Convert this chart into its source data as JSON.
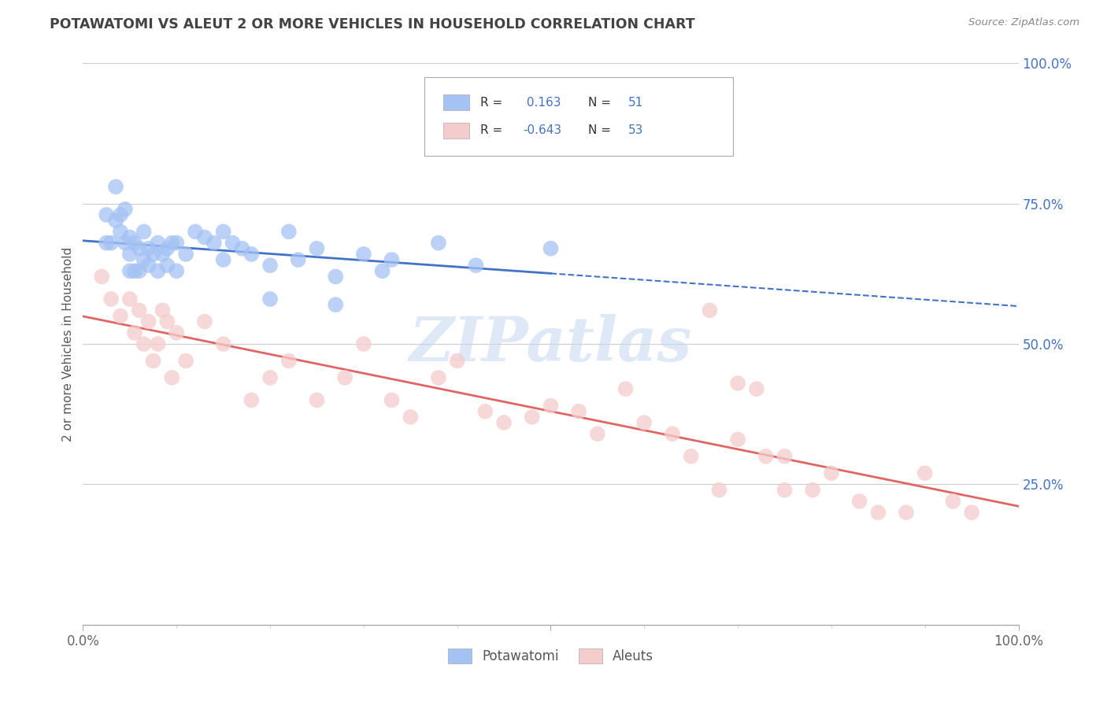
{
  "title": "POTAWATOMI VS ALEUT 2 OR MORE VEHICLES IN HOUSEHOLD CORRELATION CHART",
  "source": "Source: ZipAtlas.com",
  "ylabel": "2 or more Vehicles in Household",
  "legend_labels": [
    "Potawatomi",
    "Aleuts"
  ],
  "r_potawatomi": 0.163,
  "n_potawatomi": 51,
  "r_aleut": -0.643,
  "n_aleut": 53,
  "xlim": [
    0.0,
    1.0
  ],
  "ylim": [
    0.0,
    1.0
  ],
  "blue_color": "#a4c2f4",
  "pink_color": "#f4cccc",
  "blue_line_color": "#4472c4",
  "pink_line_color": "#e06666",
  "title_color": "#434343",
  "source_color": "#888888",
  "tick_color": "#4472c4",
  "watermark_color": "#c9d9f0",
  "potawatomi_x": [
    0.025,
    0.025,
    0.03,
    0.035,
    0.035,
    0.04,
    0.04,
    0.045,
    0.045,
    0.05,
    0.05,
    0.05,
    0.055,
    0.055,
    0.06,
    0.06,
    0.065,
    0.065,
    0.07,
    0.07,
    0.075,
    0.08,
    0.08,
    0.085,
    0.09,
    0.09,
    0.095,
    0.1,
    0.11,
    0.12,
    0.13,
    0.14,
    0.15,
    0.16,
    0.17,
    0.18,
    0.2,
    0.22,
    0.23,
    0.25,
    0.27,
    0.3,
    0.33,
    0.38,
    0.42,
    0.5,
    0.27,
    0.32,
    0.15,
    0.2,
    0.1
  ],
  "potawatomi_y": [
    0.68,
    0.73,
    0.68,
    0.72,
    0.78,
    0.7,
    0.73,
    0.68,
    0.74,
    0.63,
    0.66,
    0.69,
    0.63,
    0.68,
    0.63,
    0.67,
    0.65,
    0.7,
    0.64,
    0.67,
    0.66,
    0.63,
    0.68,
    0.66,
    0.64,
    0.67,
    0.68,
    0.68,
    0.66,
    0.7,
    0.69,
    0.68,
    0.7,
    0.68,
    0.67,
    0.66,
    0.64,
    0.7,
    0.65,
    0.67,
    0.62,
    0.66,
    0.65,
    0.68,
    0.64,
    0.67,
    0.57,
    0.63,
    0.65,
    0.58,
    0.63
  ],
  "aleut_x": [
    0.02,
    0.03,
    0.04,
    0.05,
    0.055,
    0.06,
    0.065,
    0.07,
    0.075,
    0.08,
    0.085,
    0.09,
    0.095,
    0.1,
    0.11,
    0.13,
    0.15,
    0.18,
    0.2,
    0.22,
    0.25,
    0.28,
    0.3,
    0.33,
    0.35,
    0.38,
    0.4,
    0.43,
    0.45,
    0.48,
    0.5,
    0.53,
    0.55,
    0.58,
    0.6,
    0.63,
    0.65,
    0.68,
    0.7,
    0.73,
    0.75,
    0.78,
    0.8,
    0.83,
    0.85,
    0.88,
    0.9,
    0.93,
    0.95,
    0.67,
    0.7,
    0.72,
    0.75
  ],
  "aleut_y": [
    0.62,
    0.58,
    0.55,
    0.58,
    0.52,
    0.56,
    0.5,
    0.54,
    0.47,
    0.5,
    0.56,
    0.54,
    0.44,
    0.52,
    0.47,
    0.54,
    0.5,
    0.4,
    0.44,
    0.47,
    0.4,
    0.44,
    0.5,
    0.4,
    0.37,
    0.44,
    0.47,
    0.38,
    0.36,
    0.37,
    0.39,
    0.38,
    0.34,
    0.42,
    0.36,
    0.34,
    0.3,
    0.24,
    0.33,
    0.3,
    0.24,
    0.24,
    0.27,
    0.22,
    0.2,
    0.2,
    0.27,
    0.22,
    0.2,
    0.56,
    0.43,
    0.42,
    0.3
  ]
}
